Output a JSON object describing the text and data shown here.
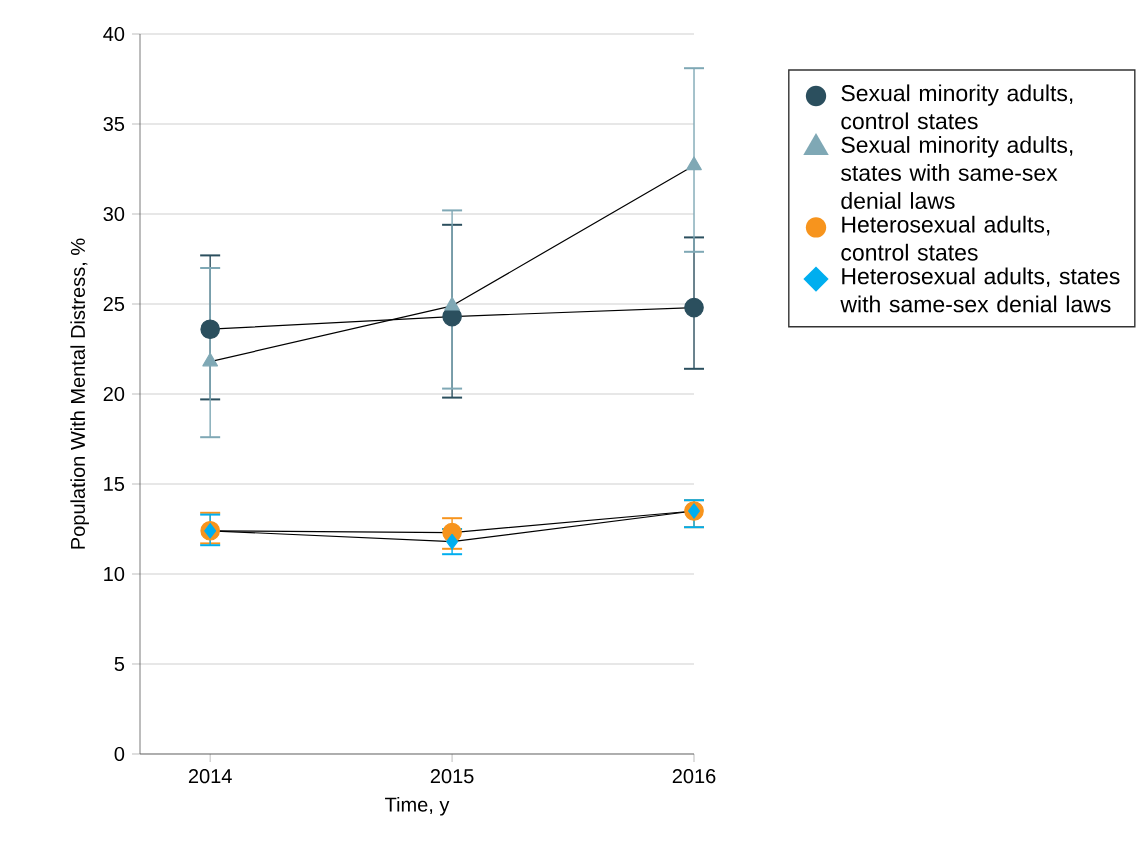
{
  "chart_data": {
    "type": "line",
    "xlabel": "Time, y",
    "ylabel": "Population With Mental Distress, %",
    "categories": [
      "2014",
      "2015",
      "2016"
    ],
    "ylim": [
      0,
      40
    ],
    "yticks": [
      0,
      5,
      10,
      15,
      20,
      25,
      30,
      35,
      40
    ],
    "grid": "y",
    "legend": "right",
    "series": [
      {
        "name": "Sexual minority adults, control states",
        "color": "#2b4f5e",
        "marker": "circle",
        "values": [
          23.6,
          24.3,
          24.8
        ],
        "errors": [
          [
            19.7,
            27.7
          ],
          [
            19.8,
            29.4
          ],
          [
            21.4,
            28.7
          ]
        ]
      },
      {
        "name": "Sexual minority adults, states with same-sex denial laws",
        "color": "#7fa8b5",
        "marker": "triangle",
        "values": [
          21.8,
          24.9,
          32.7
        ],
        "errors": [
          [
            17.6,
            27.0
          ],
          [
            20.3,
            30.2
          ],
          [
            27.9,
            38.1
          ]
        ]
      },
      {
        "name": "Heterosexual adults, control states",
        "color": "#f7941d",
        "marker": "circle",
        "values": [
          12.4,
          12.3,
          13.5
        ],
        "errors": [
          [
            11.7,
            13.4
          ],
          [
            11.4,
            13.1
          ],
          [
            12.6,
            14.1
          ]
        ]
      },
      {
        "name": "Heterosexual adults, states with same-sex denial laws",
        "color": "#00aeef",
        "marker": "diamond",
        "values": [
          12.4,
          11.8,
          13.5
        ],
        "errors": [
          [
            11.6,
            13.3
          ],
          [
            11.1,
            12.5
          ],
          [
            12.6,
            14.1
          ]
        ]
      }
    ]
  }
}
